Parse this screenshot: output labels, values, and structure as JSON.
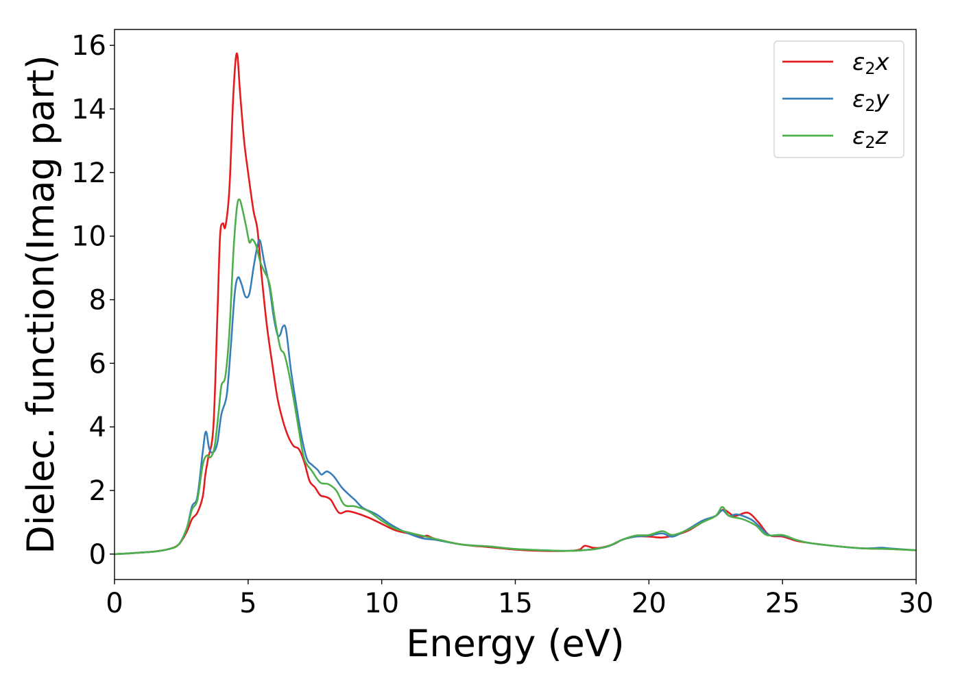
{
  "chart_data": {
    "type": "line",
    "title": "",
    "xlabel": "Energy (eV)",
    "ylabel": "Dielec. function(Imag part)",
    "xlim": [
      0,
      30
    ],
    "ylim": [
      -0.8,
      16.5
    ],
    "xticks": [
      0,
      5,
      10,
      15,
      20,
      25,
      30
    ],
    "yticks": [
      0,
      2,
      4,
      6,
      8,
      10,
      12,
      14,
      16
    ],
    "grid": false,
    "legend_position": "top-right",
    "series": [
      {
        "name": "ε2x",
        "legend_base": "ε",
        "legend_sub": "2",
        "legend_var": "x",
        "color": "#e41a1c",
        "points": [
          [
            0,
            0
          ],
          [
            0.5,
            0.02
          ],
          [
            1,
            0.05
          ],
          [
            1.5,
            0.08
          ],
          [
            2,
            0.15
          ],
          [
            2.4,
            0.3
          ],
          [
            2.7,
            0.7
          ],
          [
            2.9,
            1.1
          ],
          [
            3.1,
            1.3
          ],
          [
            3.3,
            1.8
          ],
          [
            3.4,
            2.5
          ],
          [
            3.5,
            3.0
          ],
          [
            3.7,
            4.0
          ],
          [
            3.85,
            7.5
          ],
          [
            3.95,
            10.0
          ],
          [
            4.05,
            10.4
          ],
          [
            4.15,
            10.3
          ],
          [
            4.3,
            11.5
          ],
          [
            4.45,
            14.5
          ],
          [
            4.58,
            15.75
          ],
          [
            4.7,
            14.5
          ],
          [
            4.85,
            13.0
          ],
          [
            5.0,
            12.0
          ],
          [
            5.2,
            10.8
          ],
          [
            5.35,
            10.2
          ],
          [
            5.5,
            8.8
          ],
          [
            5.7,
            7.2
          ],
          [
            5.9,
            6.0
          ],
          [
            6.1,
            4.9
          ],
          [
            6.3,
            4.2
          ],
          [
            6.5,
            3.7
          ],
          [
            6.7,
            3.4
          ],
          [
            6.9,
            3.3
          ],
          [
            7.1,
            2.9
          ],
          [
            7.3,
            2.3
          ],
          [
            7.5,
            2.1
          ],
          [
            7.7,
            1.85
          ],
          [
            7.9,
            1.8
          ],
          [
            8.1,
            1.7
          ],
          [
            8.4,
            1.3
          ],
          [
            8.7,
            1.35
          ],
          [
            9.0,
            1.3
          ],
          [
            9.5,
            1.15
          ],
          [
            10,
            0.95
          ],
          [
            10.5,
            0.75
          ],
          [
            11,
            0.65
          ],
          [
            11.5,
            0.55
          ],
          [
            11.7,
            0.58
          ],
          [
            12,
            0.48
          ],
          [
            13,
            0.3
          ],
          [
            14,
            0.22
          ],
          [
            15,
            0.14
          ],
          [
            16,
            0.1
          ],
          [
            17,
            0.1
          ],
          [
            17.4,
            0.14
          ],
          [
            17.6,
            0.26
          ],
          [
            17.9,
            0.2
          ],
          [
            18.2,
            0.2
          ],
          [
            18.7,
            0.32
          ],
          [
            19,
            0.45
          ],
          [
            19.5,
            0.55
          ],
          [
            20,
            0.55
          ],
          [
            20.5,
            0.52
          ],
          [
            21,
            0.6
          ],
          [
            21.5,
            0.75
          ],
          [
            22,
            1.0
          ],
          [
            22.5,
            1.2
          ],
          [
            22.8,
            1.4
          ],
          [
            23.2,
            1.2
          ],
          [
            23.7,
            1.3
          ],
          [
            24.1,
            1.0
          ],
          [
            24.5,
            0.6
          ],
          [
            25,
            0.55
          ],
          [
            25.5,
            0.42
          ],
          [
            26,
            0.35
          ],
          [
            27,
            0.25
          ],
          [
            28,
            0.18
          ],
          [
            29,
            0.16
          ],
          [
            30,
            0.12
          ]
        ]
      },
      {
        "name": "ε2y",
        "legend_base": "ε",
        "legend_sub": "2",
        "legend_var": "y",
        "color": "#377eb8",
        "points": [
          [
            0,
            0
          ],
          [
            0.5,
            0.02
          ],
          [
            1,
            0.05
          ],
          [
            1.5,
            0.08
          ],
          [
            2,
            0.15
          ],
          [
            2.4,
            0.3
          ],
          [
            2.7,
            0.8
          ],
          [
            2.9,
            1.5
          ],
          [
            3.1,
            1.8
          ],
          [
            3.3,
            3.2
          ],
          [
            3.42,
            3.85
          ],
          [
            3.55,
            3.3
          ],
          [
            3.7,
            3.2
          ],
          [
            3.85,
            3.5
          ],
          [
            4.0,
            4.4
          ],
          [
            4.2,
            5.0
          ],
          [
            4.35,
            6.5
          ],
          [
            4.5,
            8.2
          ],
          [
            4.62,
            8.7
          ],
          [
            4.75,
            8.5
          ],
          [
            4.9,
            8.1
          ],
          [
            5.05,
            8.2
          ],
          [
            5.2,
            9.0
          ],
          [
            5.35,
            9.7
          ],
          [
            5.45,
            9.85
          ],
          [
            5.6,
            9.2
          ],
          [
            5.8,
            8.4
          ],
          [
            5.95,
            7.5
          ],
          [
            6.1,
            6.9
          ],
          [
            6.2,
            6.9
          ],
          [
            6.3,
            7.15
          ],
          [
            6.42,
            7.05
          ],
          [
            6.6,
            5.8
          ],
          [
            6.8,
            4.7
          ],
          [
            7.0,
            3.7
          ],
          [
            7.2,
            3.0
          ],
          [
            7.4,
            2.8
          ],
          [
            7.6,
            2.65
          ],
          [
            7.75,
            2.5
          ],
          [
            7.95,
            2.6
          ],
          [
            8.2,
            2.45
          ],
          [
            8.5,
            2.1
          ],
          [
            8.8,
            1.85
          ],
          [
            9.0,
            1.7
          ],
          [
            9.3,
            1.45
          ],
          [
            9.8,
            1.25
          ],
          [
            10.3,
            0.95
          ],
          [
            10.8,
            0.72
          ],
          [
            11.5,
            0.5
          ],
          [
            12,
            0.45
          ],
          [
            13,
            0.3
          ],
          [
            14,
            0.24
          ],
          [
            15,
            0.16
          ],
          [
            16,
            0.12
          ],
          [
            17,
            0.1
          ],
          [
            17.5,
            0.12
          ],
          [
            18,
            0.16
          ],
          [
            18.5,
            0.25
          ],
          [
            19,
            0.45
          ],
          [
            19.5,
            0.55
          ],
          [
            20,
            0.58
          ],
          [
            20.5,
            0.65
          ],
          [
            20.9,
            0.55
          ],
          [
            21.5,
            0.8
          ],
          [
            22,
            1.05
          ],
          [
            22.5,
            1.2
          ],
          [
            22.75,
            1.38
          ],
          [
            23.0,
            1.2
          ],
          [
            23.3,
            1.25
          ],
          [
            23.8,
            1.1
          ],
          [
            24.1,
            0.9
          ],
          [
            24.5,
            0.6
          ],
          [
            25,
            0.58
          ],
          [
            25.5,
            0.45
          ],
          [
            26,
            0.35
          ],
          [
            27,
            0.25
          ],
          [
            28,
            0.18
          ],
          [
            28.7,
            0.2
          ],
          [
            29,
            0.18
          ],
          [
            30,
            0.12
          ]
        ]
      },
      {
        "name": "ε2z",
        "legend_base": "ε",
        "legend_sub": "2",
        "legend_var": "z",
        "color": "#4daf4a",
        "points": [
          [
            0,
            0
          ],
          [
            0.5,
            0.02
          ],
          [
            1,
            0.05
          ],
          [
            1.5,
            0.08
          ],
          [
            2,
            0.15
          ],
          [
            2.4,
            0.3
          ],
          [
            2.7,
            0.8
          ],
          [
            2.9,
            1.4
          ],
          [
            3.1,
            1.7
          ],
          [
            3.3,
            2.8
          ],
          [
            3.45,
            3.1
          ],
          [
            3.6,
            3.05
          ],
          [
            3.75,
            3.4
          ],
          [
            3.9,
            4.5
          ],
          [
            4.0,
            5.3
          ],
          [
            4.15,
            5.6
          ],
          [
            4.3,
            7.0
          ],
          [
            4.45,
            9.5
          ],
          [
            4.58,
            10.9
          ],
          [
            4.68,
            11.15
          ],
          [
            4.8,
            10.8
          ],
          [
            4.95,
            10.2
          ],
          [
            5.05,
            9.8
          ],
          [
            5.15,
            9.9
          ],
          [
            5.3,
            9.7
          ],
          [
            5.45,
            9.2
          ],
          [
            5.6,
            8.9
          ],
          [
            5.8,
            8.5
          ],
          [
            6.0,
            7.4
          ],
          [
            6.2,
            6.5
          ],
          [
            6.35,
            6.3
          ],
          [
            6.5,
            5.8
          ],
          [
            6.7,
            4.9
          ],
          [
            6.9,
            3.9
          ],
          [
            7.1,
            3.0
          ],
          [
            7.4,
            2.6
          ],
          [
            7.7,
            2.25
          ],
          [
            8.0,
            2.2
          ],
          [
            8.3,
            2.0
          ],
          [
            8.6,
            1.55
          ],
          [
            9.0,
            1.5
          ],
          [
            9.5,
            1.35
          ],
          [
            10,
            1.05
          ],
          [
            10.5,
            0.8
          ],
          [
            11,
            0.68
          ],
          [
            11.5,
            0.58
          ],
          [
            12,
            0.48
          ],
          [
            13,
            0.3
          ],
          [
            14,
            0.24
          ],
          [
            15,
            0.16
          ],
          [
            16,
            0.12
          ],
          [
            17,
            0.1
          ],
          [
            17.5,
            0.12
          ],
          [
            18,
            0.16
          ],
          [
            18.5,
            0.26
          ],
          [
            19,
            0.45
          ],
          [
            19.5,
            0.58
          ],
          [
            20,
            0.6
          ],
          [
            20.5,
            0.72
          ],
          [
            20.9,
            0.6
          ],
          [
            21.5,
            0.78
          ],
          [
            22,
            1.0
          ],
          [
            22.5,
            1.2
          ],
          [
            22.75,
            1.48
          ],
          [
            23.0,
            1.2
          ],
          [
            23.5,
            1.1
          ],
          [
            24,
            0.9
          ],
          [
            24.4,
            0.6
          ],
          [
            25,
            0.6
          ],
          [
            25.5,
            0.45
          ],
          [
            26,
            0.35
          ],
          [
            27,
            0.25
          ],
          [
            28,
            0.18
          ],
          [
            29,
            0.16
          ],
          [
            30,
            0.12
          ]
        ]
      }
    ]
  }
}
